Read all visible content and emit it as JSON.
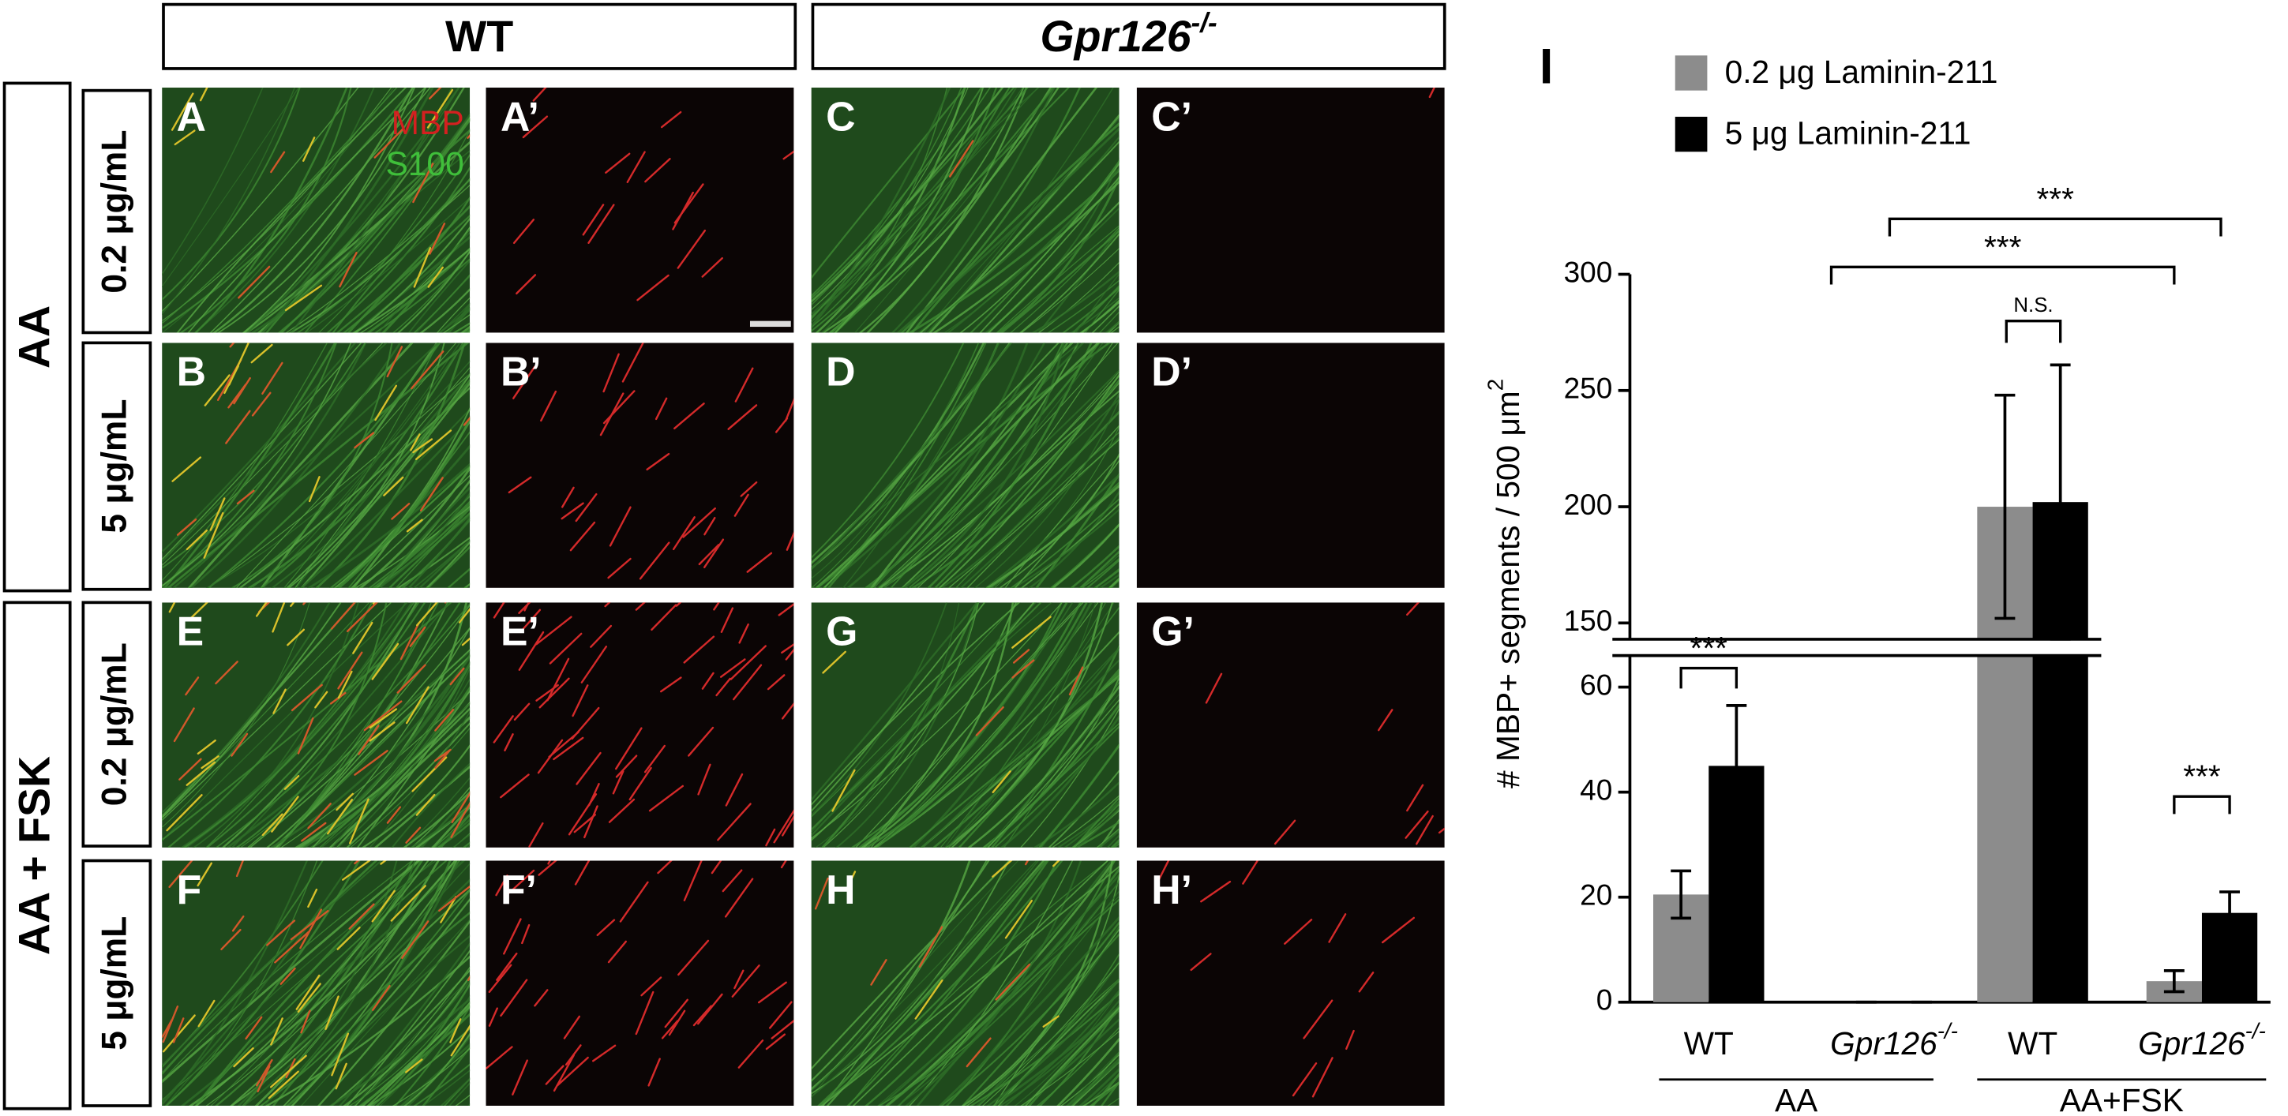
{
  "figure": {
    "column_headers": [
      {
        "text": "WT"
      },
      {
        "text": "Gpr126",
        "superscript": "-/-"
      }
    ],
    "row_groups": [
      "AA",
      "AA + FSK"
    ],
    "row_labels": [
      "0.2 μg/mL",
      "5 μg/mL",
      "0.2 μg/mL",
      "5 μg/mL"
    ],
    "panels": [
      [
        "A",
        "A’",
        "C",
        "C’"
      ],
      [
        "B",
        "B’",
        "D",
        "D’"
      ],
      [
        "E",
        "E’",
        "G",
        "G’"
      ],
      [
        "F",
        "F’",
        "H",
        "H’"
      ]
    ],
    "channel_labels": [
      "MBP",
      "S100"
    ]
  },
  "chart_data": {
    "type": "bar",
    "panel_label": "I",
    "ylabel": "# MBP+ segments / 500 μm",
    "ylabel_superscript": "2",
    "categories": [
      "WT",
      "Gpr126",
      "WT",
      "Gpr126"
    ],
    "category_superscripts": [
      null,
      "-/-",
      null,
      "-/-"
    ],
    "groups": [
      "AA",
      "AA+FSK"
    ],
    "series": [
      {
        "name": "0.2 μg Laminin-211",
        "color": "#8c8c8c",
        "values": [
          20.5,
          0,
          200,
          4
        ],
        "errors": [
          4.5,
          0,
          48,
          2
        ]
      },
      {
        "name": "5 μg Laminin-211",
        "color": "#000000",
        "values": [
          45,
          0,
          202,
          17
        ],
        "errors": [
          11.5,
          0,
          59,
          4
        ]
      }
    ],
    "axis_segments": [
      {
        "ylim": [
          0,
          66
        ],
        "yticks": [
          0,
          20,
          40,
          60
        ]
      },
      {
        "ylim": [
          143,
          300
        ],
        "yticks": [
          150,
          200,
          250,
          300
        ]
      }
    ],
    "significance": [
      "***",
      "***",
      "***",
      "N.S.",
      "***"
    ]
  }
}
